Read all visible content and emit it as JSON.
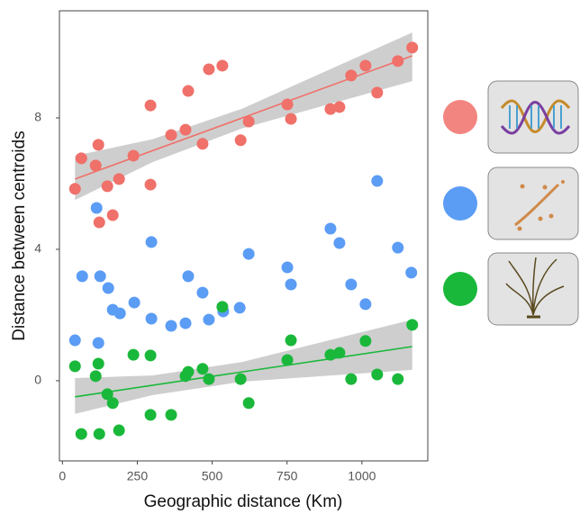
{
  "chart_data": {
    "type": "scatter",
    "x_label": "Geographic distance (Km)",
    "y_label": "Distance between centroids",
    "xlim": [
      -10,
      1220
    ],
    "ylim": [
      -2.44,
      11.26
    ],
    "xticks": [
      0,
      250,
      500,
      750,
      1000
    ],
    "yticks": [
      0,
      4,
      8
    ],
    "grid": false,
    "series": [
      {
        "color": "#f0706a",
        "x": [
          42,
          63,
          111,
          120,
          123,
          150,
          168,
          189,
          237,
          294,
          294,
          363,
          411,
          420,
          468,
          489,
          534,
          595,
          622,
          751,
          763,
          895,
          925,
          964,
          1012,
          1051,
          1120,
          1168
        ],
        "values": [
          5.84,
          6.77,
          6.55,
          7.18,
          4.82,
          5.92,
          5.04,
          6.14,
          6.85,
          8.38,
          5.97,
          7.48,
          7.64,
          8.82,
          7.21,
          9.48,
          9.59,
          7.32,
          7.89,
          8.41,
          7.97,
          8.27,
          8.33,
          9.29,
          9.59,
          8.77,
          9.73,
          10.14
        ],
        "fit": {
          "x": [
            42,
            1168
          ],
          "values": [
            6.14,
            9.89
          ]
        },
        "band": {
          "x": [
            42,
            300,
            600,
            1168
          ],
          "lower": [
            5.5,
            6.65,
            7.68,
            9.12
          ],
          "upper": [
            6.85,
            7.35,
            8.28,
            10.6
          ]
        }
      },
      {
        "color": "#5b9cf5",
        "x": [
          42,
          66,
          114,
          120,
          126,
          153,
          168,
          192,
          240,
          297,
          297,
          363,
          411,
          420,
          468,
          489,
          537,
          592,
          622,
          751,
          763,
          895,
          925,
          964,
          1012,
          1051,
          1120,
          1165
        ],
        "values": [
          1.23,
          3.18,
          5.26,
          1.15,
          3.18,
          2.82,
          2.16,
          2.05,
          2.38,
          4.22,
          1.89,
          1.67,
          1.75,
          3.18,
          2.68,
          1.86,
          2.11,
          2.22,
          3.86,
          3.45,
          2.93,
          4.63,
          4.19,
          2.93,
          2.33,
          6.08,
          4.05,
          3.29
        ]
      },
      {
        "color": "#1ab83a",
        "x": [
          42,
          63,
          111,
          120,
          123,
          150,
          168,
          189,
          237,
          294,
          294,
          363,
          411,
          420,
          468,
          489,
          534,
          595,
          622,
          751,
          763,
          895,
          925,
          964,
          1012,
          1051,
          1120,
          1168
        ],
        "values": [
          0.44,
          -1.62,
          0.14,
          0.52,
          -1.62,
          -0.41,
          -0.68,
          -1.51,
          0.79,
          0.77,
          -1.04,
          -1.04,
          0.14,
          0.27,
          0.36,
          0.05,
          2.25,
          0.05,
          -0.68,
          0.63,
          1.23,
          0.79,
          0.85,
          0.05,
          1.21,
          0.19,
          0.05,
          1.7
        ],
        "fit": {
          "x": [
            42,
            1168
          ],
          "values": [
            -0.49,
            1.04
          ]
        },
        "band": {
          "x": [
            42,
            300,
            600,
            1168
          ],
          "lower": [
            -1.01,
            -0.44,
            -0.03,
            0.33
          ],
          "upper": [
            0.08,
            0.16,
            0.57,
            1.86
          ]
        }
      }
    ]
  }
}
